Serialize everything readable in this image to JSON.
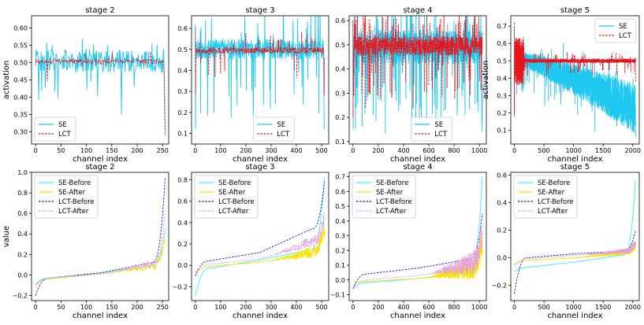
{
  "chart_data": [
    {
      "type": "line",
      "title": "stage 2",
      "xlabel": "channel index",
      "ylabel": "activation",
      "xlim": [
        -8,
        262
      ],
      "ylim": [
        0.265,
        0.635
      ],
      "xticks": [
        0,
        50,
        100,
        150,
        200,
        250
      ],
      "yticks": [
        0.3,
        0.35,
        0.4,
        0.45,
        0.5,
        0.55,
        0.6
      ],
      "ytick_labels": [
        "0.30",
        "0.35",
        "0.40",
        "0.45",
        "0.50",
        "0.55",
        "0.60"
      ],
      "legend": {
        "position": "bottom-left",
        "entries": [
          "SE",
          "LCT"
        ]
      },
      "series": [
        {
          "name": "SE",
          "color": "#1ec8f0",
          "style": "solid",
          "n": 256,
          "center": 0.505,
          "noise": 0.035,
          "spike_rate": 0.1,
          "spike_amp": 0.09,
          "start": [],
          "tail": [
            0.49,
            0.36,
            0.31
          ]
        },
        {
          "name": "LCT",
          "color": "#e8141b",
          "style": "dashed",
          "n": 256,
          "center": 0.503,
          "noise": 0.008,
          "spike_rate": 0.03,
          "spike_amp": 0.04,
          "start": [],
          "tail": [
            0.47,
            0.4,
            0.29
          ]
        }
      ]
    },
    {
      "type": "line",
      "title": "stage 3",
      "xlabel": "channel index",
      "ylabel": "",
      "xlim": [
        -15,
        528
      ],
      "ylim": [
        0.05,
        0.66
      ],
      "xticks": [
        0,
        100,
        200,
        300,
        400,
        500
      ],
      "yticks": [
        0.1,
        0.2,
        0.3,
        0.4,
        0.5,
        0.6
      ],
      "ytick_labels": [
        "0.1",
        "0.2",
        "0.3",
        "0.4",
        "0.5",
        "0.6"
      ],
      "legend": {
        "position": "bottom-center",
        "entries": [
          "SE",
          "LCT"
        ]
      },
      "series": [
        {
          "name": "SE",
          "color": "#1ec8f0",
          "style": "solid",
          "n": 512,
          "center": 0.5,
          "noise": 0.05,
          "spike_rate": 0.09,
          "spike_amp": 0.22,
          "start": [
            0.62,
            0.12
          ],
          "tail": [
            0.3,
            0.15,
            0.12
          ]
        },
        {
          "name": "LCT",
          "color": "#e8141b",
          "style": "dashed",
          "n": 512,
          "center": 0.495,
          "noise": 0.015,
          "spike_rate": 0.04,
          "spike_amp": 0.09,
          "start": [
            0.6,
            0.28
          ],
          "tail": [
            0.4,
            0.28,
            0.46
          ]
        }
      ]
    },
    {
      "type": "line",
      "title": "stage 4",
      "xlabel": "channel index",
      "ylabel": "",
      "xlim": [
        -30,
        1055
      ],
      "ylim": [
        0.09,
        0.62
      ],
      "xticks": [
        0,
        200,
        400,
        600,
        800,
        1000
      ],
      "yticks": [
        0.1,
        0.2,
        0.3,
        0.4,
        0.5,
        0.6
      ],
      "ytick_labels": [
        "0.1",
        "0.2",
        "0.3",
        "0.4",
        "0.5",
        "0.6"
      ],
      "legend": {
        "position": "bottom-center",
        "entries": [
          "SE",
          "LCT"
        ]
      },
      "series": [
        {
          "name": "SE",
          "color": "#1ec8f0",
          "style": "solid",
          "n": 1024,
          "center": 0.49,
          "noise": 0.07,
          "spike_rate": 0.1,
          "spike_amp": 0.22,
          "start": [
            0.6,
            0.15
          ],
          "tail": [
            0.2,
            0.14,
            0.3
          ]
        },
        {
          "name": "LCT",
          "color": "#e8141b",
          "style": "dashed",
          "n": 1024,
          "center": 0.495,
          "noise": 0.04,
          "spike_rate": 0.09,
          "spike_amp": 0.16,
          "start": [
            0.6,
            0.2
          ],
          "tail": [
            0.46,
            0.55,
            0.48
          ]
        }
      ]
    },
    {
      "type": "line",
      "title": "stage 5",
      "xlabel": "channel index",
      "ylabel": "activation",
      "xlim": [
        -60,
        2110
      ],
      "ylim": [
        0.02,
        0.76
      ],
      "xticks": [
        0,
        500,
        1000,
        1500,
        2000
      ],
      "yticks": [
        0.1,
        0.2,
        0.3,
        0.4,
        0.5,
        0.6,
        0.7
      ],
      "ytick_labels": [
        "0.1",
        "0.2",
        "0.3",
        "0.4",
        "0.5",
        "0.6",
        "0.7"
      ],
      "legend": {
        "position": "top-right",
        "entries": [
          "SE",
          "LCT"
        ]
      },
      "series": [
        {
          "name": "SE",
          "color": "#1ec8f0",
          "style": "solid",
          "n": 2048,
          "center": 0.45,
          "trend": "decreasing",
          "noise": 0.09,
          "spike_rate": 0.05,
          "spike_amp": 0.12,
          "start": [
            0.7,
            0.25
          ],
          "tail": [
            0.1,
            0.06
          ]
        },
        {
          "name": "LCT",
          "color": "#e8141b",
          "style": "dashed",
          "n": 2048,
          "center": 0.5,
          "noise": 0.012,
          "spike_rate": 0.03,
          "spike_amp": 0.05,
          "head_noise": 0.14,
          "start": [
            0.72,
            0.18
          ],
          "tail": [
            0.52,
            0.38
          ]
        }
      ]
    },
    {
      "type": "line",
      "title": "stage 2",
      "xlabel": "channel index",
      "ylabel": "value",
      "xlim": [
        -8,
        262
      ],
      "ylim": [
        -0.25,
        1.0
      ],
      "xticks": [
        0,
        50,
        100,
        150,
        200,
        250
      ],
      "yticks": [
        -0.2,
        0.0,
        0.2,
        0.4,
        0.6,
        0.8,
        1.0
      ],
      "ytick_labels": [
        "−0.2",
        "0.0",
        "0.2",
        "0.4",
        "0.6",
        "0.8",
        "1.0"
      ],
      "legend": {
        "position": "top-left",
        "entries": [
          "SE-Before",
          "SE-After",
          "LCT-Before",
          "LCT-After"
        ]
      },
      "series": [
        {
          "name": "SE-Before",
          "color": "#3ff0ff",
          "style": "solid",
          "n": 256,
          "sorted": [
            -0.09,
            -0.03,
            0.02,
            0.09,
            0.45
          ]
        },
        {
          "name": "SE-After",
          "color": "#f5e400",
          "style": "solid",
          "n": 256,
          "sorted": [
            -0.1,
            -0.04,
            0.01,
            0.07,
            0.35
          ],
          "jitter": 0.02
        },
        {
          "name": "LCT-Before",
          "color": "#1a1ad6",
          "style": "dashed",
          "n": 256,
          "sorted": [
            -0.2,
            -0.03,
            0.02,
            0.12,
            0.95
          ]
        },
        {
          "name": "LCT-After",
          "color": "#e6a0dc",
          "style": "dashed",
          "n": 256,
          "sorted": [
            -0.12,
            -0.03,
            0.01,
            0.1,
            0.6
          ],
          "jitter": 0.02
        }
      ]
    },
    {
      "type": "line",
      "title": "stage 3",
      "xlabel": "channel index",
      "ylabel": "",
      "xlim": [
        -15,
        528
      ],
      "ylim": [
        -0.33,
        0.87
      ],
      "xticks": [
        0,
        100,
        200,
        300,
        400,
        500
      ],
      "yticks": [
        -0.2,
        0.0,
        0.2,
        0.4,
        0.6,
        0.8
      ],
      "ytick_labels": [
        "−0.2",
        "0.0",
        "0.2",
        "0.4",
        "0.6",
        "0.8"
      ],
      "legend": {
        "position": "top-left",
        "entries": [
          "SE-Before",
          "SE-After",
          "LCT-Before",
          "LCT-After"
        ]
      },
      "series": [
        {
          "name": "SE-Before",
          "color": "#3ff0ff",
          "style": "solid",
          "n": 512,
          "sorted": [
            -0.29,
            -0.03,
            0.05,
            0.15,
            0.82
          ]
        },
        {
          "name": "SE-After",
          "color": "#f5e400",
          "style": "solid",
          "n": 512,
          "sorted": [
            -0.08,
            -0.01,
            0.03,
            0.1,
            0.3
          ],
          "jitter": 0.03
        },
        {
          "name": "LCT-Before",
          "color": "#1a1ad6",
          "style": "dashed",
          "n": 512,
          "sorted": [
            -0.1,
            0.04,
            0.12,
            0.34,
            0.78
          ]
        },
        {
          "name": "LCT-After",
          "color": "#e6a0dc",
          "style": "dashed",
          "n": 512,
          "sorted": [
            -0.06,
            0.01,
            0.06,
            0.2,
            0.42
          ],
          "jitter": 0.03
        }
      ]
    },
    {
      "type": "line",
      "title": "stage 4",
      "xlabel": "channel index",
      "ylabel": "",
      "xlim": [
        -30,
        1055
      ],
      "ylim": [
        -0.14,
        0.73
      ],
      "xticks": [
        0,
        200,
        400,
        600,
        800,
        1000
      ],
      "yticks": [
        -0.1,
        0.0,
        0.1,
        0.2,
        0.3,
        0.4,
        0.5,
        0.6,
        0.7
      ],
      "ytick_labels": [
        "−0.1",
        "0.0",
        "0.1",
        "0.2",
        "0.3",
        "0.4",
        "0.5",
        "0.6",
        "0.7"
      ],
      "legend": {
        "position": "top-left",
        "entries": [
          "SE-Before",
          "SE-After",
          "LCT-Before",
          "LCT-After"
        ]
      },
      "series": [
        {
          "name": "SE-Before",
          "color": "#3ff0ff",
          "style": "solid",
          "n": 1024,
          "sorted": [
            -0.06,
            -0.02,
            0.01,
            0.05,
            0.7
          ]
        },
        {
          "name": "SE-After",
          "color": "#f5e400",
          "style": "solid",
          "n": 1024,
          "sorted": [
            -0.04,
            -0.01,
            0.01,
            0.04,
            0.22
          ],
          "jitter": 0.04
        },
        {
          "name": "LCT-Before",
          "color": "#1a1ad6",
          "style": "dashed",
          "n": 1024,
          "sorted": [
            -0.06,
            0.04,
            0.08,
            0.14,
            0.45
          ]
        },
        {
          "name": "LCT-After",
          "color": "#e6a0dc",
          "style": "dashed",
          "n": 1024,
          "sorted": [
            -0.05,
            0.0,
            0.03,
            0.08,
            0.28
          ],
          "jitter": 0.04
        }
      ]
    },
    {
      "type": "line",
      "title": "stage 5",
      "xlabel": "channel index",
      "ylabel": "",
      "xlim": [
        -60,
        2110
      ],
      "ylim": [
        -0.31,
        0.62
      ],
      "xticks": [
        0,
        500,
        1000,
        1500,
        2000
      ],
      "yticks": [
        -0.2,
        0.0,
        0.2,
        0.4,
        0.6
      ],
      "ytick_labels": [
        "−0.2",
        "0.0",
        "0.2",
        "0.4",
        "0.6"
      ],
      "legend": {
        "position": "top-left",
        "entries": [
          "SE-Before",
          "SE-After",
          "LCT-Before",
          "LCT-After"
        ]
      },
      "series": [
        {
          "name": "SE-Before",
          "color": "#3ff0ff",
          "style": "solid",
          "n": 2048,
          "sorted": [
            -0.1,
            -0.07,
            -0.03,
            0.02,
            0.57
          ]
        },
        {
          "name": "SE-After",
          "color": "#f5e400",
          "style": "solid",
          "n": 2048,
          "sorted": [
            -0.05,
            -0.02,
            0.0,
            0.03,
            0.08
          ],
          "jitter": 0.01
        },
        {
          "name": "LCT-Before",
          "color": "#1a1ad6",
          "style": "dashed",
          "n": 2048,
          "sorted": [
            -0.26,
            0.0,
            0.03,
            0.05,
            0.2
          ]
        },
        {
          "name": "LCT-After",
          "color": "#e6a0dc",
          "style": "dashed",
          "n": 2048,
          "sorted": [
            -0.06,
            -0.01,
            0.02,
            0.04,
            0.1
          ],
          "jitter": 0.01
        }
      ]
    }
  ]
}
